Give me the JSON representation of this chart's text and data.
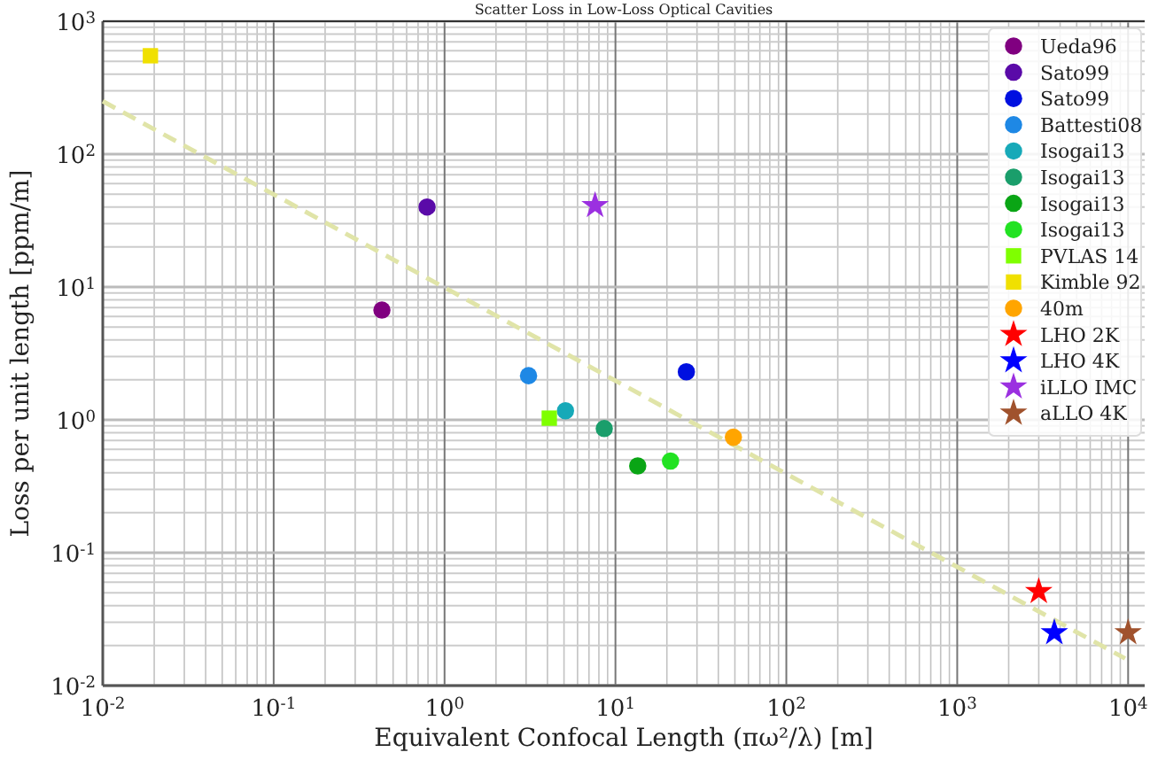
{
  "chart_data": {
    "type": "scatter",
    "title": "Scatter Loss in Low-Loss Optical Cavities",
    "xlabel": "Equivalent Confocal Length (πω²/λ) [m]",
    "ylabel": "Loss per unit length [ppm/m]",
    "log": "xy",
    "grid": true,
    "legend": "top right",
    "xlim": [
      0.01,
      12500
    ],
    "ylim": [
      0.01,
      1000
    ],
    "xticks": [
      {
        "value": 0.01,
        "label": "10$^{-2}$"
      },
      {
        "value": 0.1,
        "label": "10$^{-1}$"
      },
      {
        "value": 1,
        "label": "10$^{0}$"
      },
      {
        "value": 10,
        "label": "10$^{1}$"
      },
      {
        "value": 100,
        "label": "10$^{2}$"
      },
      {
        "value": 1000,
        "label": "10$^{3}$"
      },
      {
        "value": 10000,
        "label": "10$^{4}$"
      }
    ],
    "yticks": [
      {
        "value": 0.01,
        "label": "10$^{-2}$"
      },
      {
        "value": 0.1,
        "label": "10$^{-1}$"
      },
      {
        "value": 1,
        "label": "10$^{0}$"
      },
      {
        "value": 10,
        "label": "10$^{1}$"
      },
      {
        "value": 100,
        "label": "10$^{2}$"
      },
      {
        "value": 1000,
        "label": "10$^{3}$"
      }
    ],
    "series": [
      {
        "type": "line",
        "line_style": "dashed",
        "color": "#e0e4a8",
        "x": [
          0.01,
          9600
        ],
        "values": [
          250,
          0.016
        ]
      },
      {
        "name": "Ueda96",
        "marker": "circle",
        "color": "#800080",
        "x": [
          0.43
        ],
        "values": [
          6.7
        ]
      },
      {
        "name": "Sato99",
        "marker": "circle",
        "color": "#5a0aa8",
        "x": [
          0.79
        ],
        "values": [
          40
        ]
      },
      {
        "name": "Sato99",
        "marker": "circle",
        "color": "#0010e0",
        "x": [
          26
        ],
        "values": [
          2.3
        ]
      },
      {
        "name": "Battesti08",
        "marker": "circle",
        "color": "#1e88e5",
        "x": [
          3.1
        ],
        "values": [
          2.15
        ]
      },
      {
        "name": "Isogai13",
        "marker": "circle",
        "color": "#17a9b8",
        "x": [
          5.1
        ],
        "values": [
          1.17
        ]
      },
      {
        "name": "Isogai13",
        "marker": "circle",
        "color": "#1a9e6b",
        "x": [
          8.6
        ],
        "values": [
          0.86
        ]
      },
      {
        "name": "Isogai13",
        "marker": "circle",
        "color": "#0aa515",
        "x": [
          13.5
        ],
        "values": [
          0.45
        ]
      },
      {
        "name": "Isogai13",
        "marker": "circle",
        "color": "#22e222",
        "x": [
          21
        ],
        "values": [
          0.49
        ]
      },
      {
        "name": "PVLAS 14",
        "marker": "square",
        "color": "#7fff00",
        "x": [
          4.1
        ],
        "values": [
          1.03
        ]
      },
      {
        "name": "Kimble 92",
        "marker": "square",
        "color": "#f0e000",
        "x": [
          0.019
        ],
        "values": [
          550
        ]
      },
      {
        "name": "40m",
        "marker": "circle",
        "color": "#ffa500",
        "x": [
          49
        ],
        "values": [
          0.74
        ]
      },
      {
        "name": "LHO 2K",
        "marker": "star",
        "color": "#ff0000",
        "x": [
          3000
        ],
        "values": [
          0.051
        ]
      },
      {
        "name": "LHO 4K",
        "marker": "star",
        "color": "#0000ff",
        "x": [
          3700
        ],
        "values": [
          0.025
        ]
      },
      {
        "name": "iLLO IMC",
        "marker": "star",
        "color": "#9b30e0",
        "x": [
          7.6
        ],
        "values": [
          41
        ]
      },
      {
        "name": "aLLO 4K",
        "marker": "star",
        "color": "#a0522d",
        "x": [
          10000
        ],
        "values": [
          0.025
        ]
      }
    ]
  }
}
